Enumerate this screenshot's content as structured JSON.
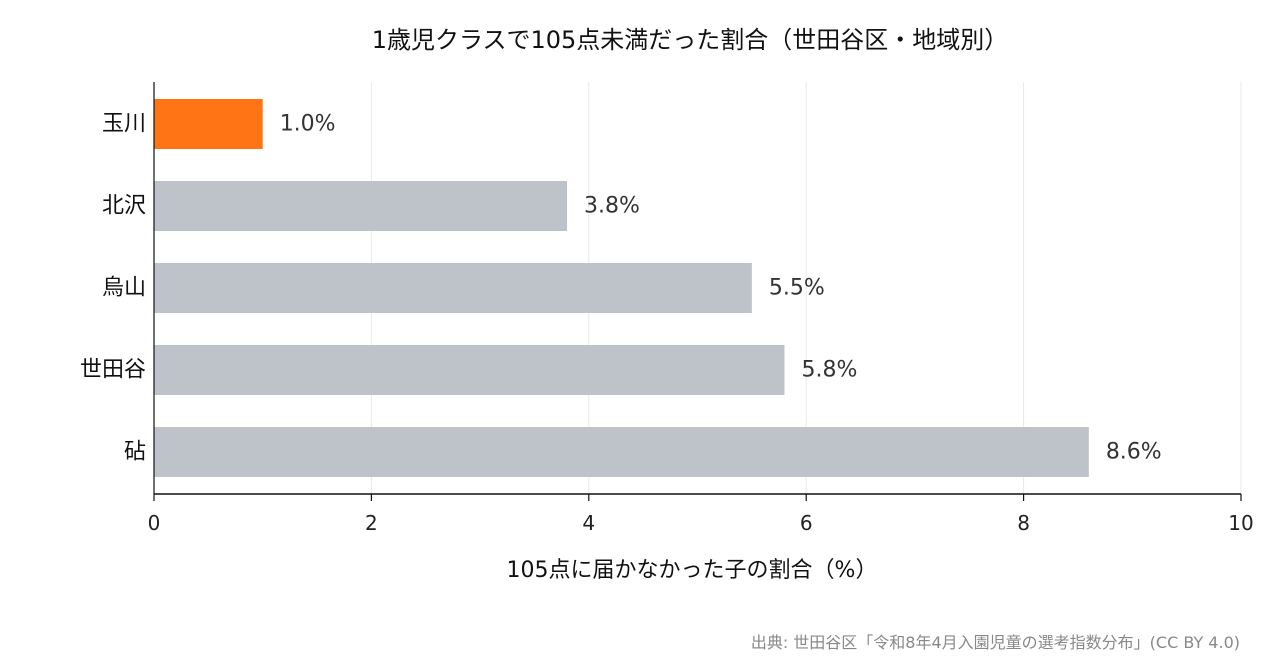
{
  "chart_data": {
    "type": "bar",
    "orientation": "horizontal",
    "title": "1歳児クラスで105点未満だった割合（世田谷区・地域別）",
    "xlabel": "105点に届かなかった子の割合（%）",
    "ylabel": "",
    "xlim": [
      0,
      10
    ],
    "xticks": [
      0,
      2,
      4,
      6,
      8,
      10
    ],
    "grid": true,
    "categories": [
      "玉川",
      "北沢",
      "烏山",
      "世田谷",
      "砧"
    ],
    "values": [
      1.0,
      3.8,
      5.5,
      5.8,
      8.6
    ],
    "data_labels": [
      "1.0%",
      "3.8%",
      "5.5%",
      "5.8%",
      "8.6%"
    ],
    "highlight_index": 0,
    "colors": {
      "highlight": "#FF7415",
      "default": "#BEC3CA",
      "grid": "#E8E8E8",
      "axis": "#111111"
    },
    "source": "出典: 世田谷区「令和8年4月入園児童の選考指数分布」(CC BY 4.0)"
  }
}
